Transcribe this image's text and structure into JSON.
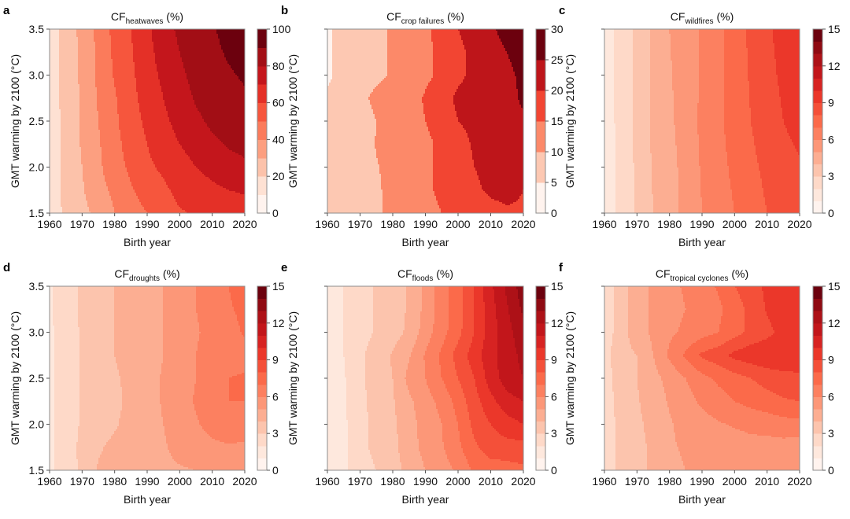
{
  "figure": {
    "panels_layout": "2 rows x 3 columns"
  },
  "chart_data": [
    {
      "id": "a",
      "type": "heatmap",
      "letter": "a",
      "title_main": "CF",
      "title_sub": "heatwaves",
      "title_suffix": " (%)",
      "xlabel": "Birth year",
      "ylabel": "GMT warming by 2100 (°C)",
      "show_y_tick_labels": true,
      "xlim": [
        1960,
        2020
      ],
      "ylim": [
        1.5,
        3.5
      ],
      "x_ticks": [
        1960,
        1970,
        1980,
        1990,
        2000,
        2010,
        2020
      ],
      "y_ticks": [
        1.5,
        2.0,
        2.5,
        3.0,
        3.5
      ],
      "y_tick_labels": [
        "1.5",
        "2.0",
        "2.5",
        "3.0",
        "3.5"
      ],
      "levels": [
        0,
        10,
        20,
        30,
        40,
        50,
        60,
        70,
        80,
        90,
        100
      ],
      "colorbar_ticks": [
        0,
        20,
        40,
        60,
        80,
        100
      ],
      "birth_years": [
        1960,
        1965,
        1970,
        1975,
        1980,
        1985,
        1990,
        1995,
        2000,
        2005,
        2010,
        2015,
        2020
      ],
      "gmt": [
        1.5,
        1.75,
        2.0,
        2.25,
        2.5,
        2.75,
        3.0,
        3.25,
        3.5
      ],
      "values": [
        [
          14,
          22,
          27,
          33,
          40,
          46,
          50,
          55,
          59,
          61,
          63,
          65,
          66
        ],
        [
          14,
          23,
          29,
          37,
          42,
          49,
          54,
          58,
          63,
          66,
          68,
          70,
          71
        ],
        [
          14,
          23,
          30,
          38,
          46,
          52,
          58,
          62,
          66,
          70,
          73,
          76,
          78
        ],
        [
          14,
          23,
          31,
          39,
          47,
          54,
          60,
          66,
          70,
          74,
          78,
          81,
          83
        ],
        [
          14,
          23,
          31,
          40,
          48,
          56,
          62,
          68,
          73,
          78,
          82,
          85,
          87
        ],
        [
          14,
          24,
          31,
          41,
          49,
          57,
          64,
          70,
          76,
          81,
          85,
          87,
          89
        ],
        [
          14,
          24,
          32,
          42,
          51,
          58,
          66,
          72,
          78,
          83,
          87,
          89,
          91
        ],
        [
          14,
          24,
          32,
          42,
          52,
          59,
          67,
          74,
          80,
          85,
          88,
          91,
          94
        ],
        [
          14,
          24,
          33,
          43,
          53,
          60,
          68,
          76,
          82,
          86,
          89,
          93,
          97
        ]
      ]
    },
    {
      "id": "b",
      "type": "heatmap",
      "letter": "b",
      "title_main": "CF",
      "title_sub": "crop failures",
      "title_suffix": " (%)",
      "xlabel": "Birth year",
      "ylabel": "GMT warming by 2100 (°C)",
      "show_y_tick_labels": false,
      "xlim": [
        1960,
        2020
      ],
      "ylim": [
        1.5,
        3.5
      ],
      "x_ticks": [
        1960,
        1970,
        1980,
        1990,
        2000,
        2010,
        2020
      ],
      "y_ticks": [
        1.5,
        2.0,
        2.5,
        3.0,
        3.5
      ],
      "y_tick_labels": [
        "",
        "",
        "",
        "",
        ""
      ],
      "levels": [
        0,
        5,
        10,
        15,
        20,
        25,
        30
      ],
      "colorbar_ticks": [
        0,
        5,
        10,
        15,
        20,
        25,
        30
      ],
      "birth_years": [
        1960,
        1965,
        1970,
        1975,
        1980,
        1985,
        1990,
        1995,
        2000,
        2005,
        2010,
        2015,
        2020
      ],
      "gmt": [
        1.5,
        1.75,
        2.0,
        2.25,
        2.5,
        2.75,
        3.0,
        3.25,
        3.5
      ],
      "values": [
        [
          6,
          7,
          8,
          9.5,
          11,
          12,
          13.5,
          15,
          16,
          17,
          18,
          19,
          19
        ],
        [
          6,
          7,
          8,
          9.5,
          11,
          12,
          14,
          16,
          17.5,
          19,
          21,
          22,
          20
        ],
        [
          6,
          7,
          8,
          9.8,
          11,
          12.5,
          14,
          16,
          18,
          20,
          21.5,
          20,
          21
        ],
        [
          6,
          7,
          8,
          10.2,
          11,
          12.5,
          14,
          16,
          18.5,
          20.5,
          22,
          23,
          24
        ],
        [
          6,
          7,
          8,
          10,
          11.5,
          13,
          15,
          17,
          20,
          21,
          22,
          23,
          24
        ],
        [
          6,
          7,
          9,
          11,
          12,
          13,
          15.5,
          18,
          21,
          22,
          22,
          23,
          26
        ],
        [
          4,
          7,
          8,
          9,
          10.5,
          12,
          14,
          16,
          19,
          21,
          22,
          24,
          26
        ],
        [
          4,
          7,
          8,
          9,
          10.5,
          12,
          14,
          16,
          19,
          21,
          23,
          25,
          27
        ],
        [
          4,
          7,
          8,
          9,
          10.5,
          12,
          14,
          17,
          20,
          22,
          24,
          27,
          29
        ]
      ]
    },
    {
      "id": "c",
      "type": "heatmap",
      "letter": "c",
      "title_main": "CF",
      "title_sub": "wildfires",
      "title_suffix": " (%)",
      "xlabel": "Birth year",
      "ylabel": "GMT warming by 2100 (°C)",
      "show_y_tick_labels": false,
      "xlim": [
        1960,
        2020
      ],
      "ylim": [
        1.5,
        3.5
      ],
      "x_ticks": [
        1960,
        1970,
        1980,
        1990,
        2000,
        2010,
        2020
      ],
      "y_ticks": [
        1.5,
        2.0,
        2.5,
        3.0,
        3.5
      ],
      "y_tick_labels": [
        "",
        "",
        "",
        "",
        ""
      ],
      "levels": [
        0,
        1,
        2,
        3,
        4,
        5,
        6,
        7,
        8,
        9,
        10,
        11,
        12,
        13,
        14,
        15
      ],
      "colorbar_ticks": [
        0,
        3,
        6,
        9,
        12,
        15
      ],
      "birth_years": [
        1960,
        1965,
        1970,
        1975,
        1980,
        1985,
        1990,
        1995,
        2000,
        2005,
        2010,
        2015,
        2020
      ],
      "gmt": [
        1.5,
        2.0,
        2.5,
        3.0,
        3.5
      ],
      "values": [
        [
          1.5,
          2.2,
          3.2,
          4,
          4.6,
          5.3,
          6,
          6.5,
          7,
          7.6,
          8,
          8.3,
          8.4
        ],
        [
          1.5,
          2.2,
          3.2,
          4.1,
          4.6,
          5.4,
          6.1,
          6.7,
          7.2,
          7.8,
          8.2,
          8.7,
          8.9
        ],
        [
          1.5,
          2.3,
          3.3,
          4.2,
          4.8,
          5.5,
          6.2,
          6.8,
          7.4,
          8,
          8.5,
          9,
          9.3
        ],
        [
          1.5,
          2.3,
          3.3,
          4.2,
          4.9,
          5.5,
          6.1,
          6.7,
          7.5,
          8.1,
          8.7,
          9.2,
          9.6
        ],
        [
          1.5,
          2.3,
          3.3,
          4.2,
          5,
          5.6,
          6.1,
          6.7,
          7.5,
          8.2,
          8.8,
          9.4,
          10
        ]
      ]
    },
    {
      "id": "d",
      "type": "heatmap",
      "letter": "d",
      "title_main": "CF",
      "title_sub": "droughts",
      "title_suffix": " (%)",
      "xlabel": "Birth year",
      "ylabel": "GMT warming by 2100 (°C)",
      "show_y_tick_labels": true,
      "xlim": [
        1960,
        2020
      ],
      "ylim": [
        1.5,
        3.5
      ],
      "x_ticks": [
        1960,
        1970,
        1980,
        1990,
        2000,
        2010,
        2020
      ],
      "y_ticks": [
        1.5,
        2.0,
        2.5,
        3.0,
        3.5
      ],
      "y_tick_labels": [
        "1.5",
        "2.0",
        "2.5",
        "3.0",
        "3.5"
      ],
      "levels": [
        0,
        1,
        2,
        3,
        4,
        5,
        6,
        7,
        8,
        9,
        10,
        11,
        12,
        13,
        14,
        15
      ],
      "colorbar_ticks": [
        0,
        3,
        6,
        9,
        12,
        15
      ],
      "birth_years": [
        1960,
        1965,
        1970,
        1975,
        1980,
        1985,
        1990,
        1995,
        2000,
        2005,
        2010,
        2015,
        2020
      ],
      "gmt": [
        1.5,
        1.75,
        2.0,
        2.25,
        2.5,
        2.75,
        3.0,
        3.25,
        3.5
      ],
      "values": [
        [
          1.8,
          2.5,
          3.2,
          4.1,
          4.3,
          4.5,
          4.6,
          4.8,
          4.9,
          5,
          5.2,
          5.3,
          5.2
        ],
        [
          1.8,
          2.6,
          3.2,
          3.9,
          4.2,
          4.4,
          4.6,
          4.9,
          5.3,
          5.6,
          5.8,
          5.9,
          5.8
        ],
        [
          1.8,
          2.6,
          3.1,
          3.6,
          3.9,
          4.3,
          4.6,
          5,
          5.5,
          5.9,
          6.3,
          6.6,
          6.6
        ],
        [
          1.8,
          2.6,
          3.1,
          3.6,
          3.8,
          4.2,
          4.6,
          5.1,
          5.6,
          6.1,
          6.8,
          7,
          7
        ],
        [
          1.8,
          2.6,
          3.1,
          3.6,
          3.9,
          4.2,
          4.6,
          5.1,
          5.5,
          6,
          6.8,
          7,
          7.1
        ],
        [
          1.8,
          2.6,
          3.1,
          3.6,
          4,
          4.3,
          4.6,
          5,
          5.4,
          6,
          6.4,
          6.6,
          6.7
        ],
        [
          1.8,
          2.6,
          3.1,
          3.6,
          4,
          4.3,
          4.6,
          5,
          5.4,
          5.9,
          6.3,
          6.7,
          7.1
        ],
        [
          1.8,
          2.7,
          3.1,
          3.6,
          4,
          4.4,
          4.7,
          5,
          5.5,
          6,
          6.4,
          6.9,
          7.2
        ],
        [
          1.8,
          2.7,
          3.1,
          3.6,
          4,
          4.4,
          4.8,
          5,
          5.5,
          6,
          6.5,
          7,
          7.4
        ]
      ]
    },
    {
      "id": "e",
      "type": "heatmap",
      "letter": "e",
      "title_main": "CF",
      "title_sub": "floods",
      "title_suffix": " (%)",
      "xlabel": "Birth year",
      "ylabel": "GMT warming by 2100 (°C)",
      "show_y_tick_labels": false,
      "xlim": [
        1960,
        2020
      ],
      "ylim": [
        1.5,
        3.5
      ],
      "x_ticks": [
        1960,
        1970,
        1980,
        1990,
        2000,
        2010,
        2020
      ],
      "y_ticks": [
        1.5,
        2.0,
        2.5,
        3.0,
        3.5
      ],
      "y_tick_labels": [
        "",
        "",
        "",
        "",
        ""
      ],
      "levels": [
        0,
        1,
        2,
        3,
        4,
        5,
        6,
        7,
        8,
        9,
        10,
        11,
        12,
        13,
        14,
        15
      ],
      "colorbar_ticks": [
        0,
        3,
        6,
        9,
        12,
        15
      ],
      "birth_years": [
        1960,
        1965,
        1970,
        1975,
        1980,
        1985,
        1990,
        1995,
        2000,
        2005,
        2010,
        2015,
        2020
      ],
      "gmt": [
        1.5,
        1.75,
        2.0,
        2.25,
        2.5,
        2.75,
        3.0,
        3.25,
        3.5
      ],
      "values": [
        [
          1.5,
          1.8,
          2.5,
          3,
          3.6,
          4.3,
          5,
          5.5,
          6.2,
          7.2,
          7.5,
          7.6,
          7.8
        ],
        [
          1.5,
          1.8,
          2.7,
          3.3,
          3.7,
          4.6,
          5.3,
          5.9,
          6.8,
          7.8,
          8.5,
          8.6,
          8.6
        ],
        [
          1.5,
          1.8,
          2.7,
          3.3,
          3.8,
          4.6,
          5.4,
          6,
          7,
          8.3,
          9,
          9.6,
          10
        ],
        [
          1.5,
          1.9,
          2.7,
          3.4,
          3.9,
          4.8,
          5.6,
          6.3,
          7.4,
          8.6,
          9.7,
          10.6,
          11
        ],
        [
          1.5,
          1.9,
          2.8,
          3.5,
          4,
          5.3,
          6,
          7,
          8,
          9,
          10.5,
          11.5,
          12
        ],
        [
          1.5,
          2,
          2.8,
          3.5,
          4.1,
          4.9,
          6.1,
          7.2,
          8.4,
          9.5,
          10.7,
          11.5,
          12.3
        ],
        [
          1.5,
          2,
          2.6,
          3.1,
          3.6,
          4.2,
          5.5,
          6.6,
          7.7,
          9,
          10.5,
          11.6,
          12.7
        ],
        [
          1.5,
          2,
          2.6,
          3.1,
          3.6,
          4.1,
          5.3,
          6.5,
          7.6,
          9,
          10.6,
          11.9,
          13.2
        ],
        [
          1.5,
          2,
          2.6,
          3.1,
          3.6,
          4.1,
          5.3,
          6.5,
          7.6,
          9.1,
          10.8,
          12.2,
          13.6
        ]
      ]
    },
    {
      "id": "f",
      "type": "heatmap",
      "letter": "f",
      "title_main": "CF",
      "title_sub": "tropical cyclones",
      "title_suffix": " (%)",
      "xlabel": "Birth year",
      "ylabel": "GMT warming by 2100 (°C)",
      "show_y_tick_labels": false,
      "xlim": [
        1960,
        2020
      ],
      "ylim": [
        1.5,
        3.5
      ],
      "x_ticks": [
        1960,
        1970,
        1980,
        1990,
        2000,
        2010,
        2020
      ],
      "y_ticks": [
        1.5,
        2.0,
        2.5,
        3.0,
        3.5
      ],
      "y_tick_labels": [
        "",
        "",
        "",
        "",
        ""
      ],
      "levels": [
        0,
        1,
        2,
        3,
        4,
        5,
        6,
        7,
        8,
        9,
        10,
        11,
        12,
        13,
        14,
        15
      ],
      "colorbar_ticks": [
        0,
        3,
        6,
        9,
        12,
        15
      ],
      "birth_years": [
        1960,
        1965,
        1970,
        1975,
        1980,
        1985,
        1990,
        1995,
        2000,
        2005,
        2010,
        2015,
        2020
      ],
      "gmt": [
        1.5,
        1.75,
        2.0,
        2.25,
        2.5,
        2.75,
        3.0,
        3.25,
        3.5
      ],
      "values": [
        [
          2.4,
          3.3,
          3.7,
          4.2,
          4.8,
          5,
          5.2,
          5.2,
          5.3,
          5.3,
          5.3,
          5.4,
          5.4
        ],
        [
          2.4,
          3.3,
          3.7,
          4.2,
          4.9,
          5.1,
          5.3,
          5.4,
          5.5,
          5.6,
          5.6,
          5.6,
          5.5
        ],
        [
          2.4,
          3.3,
          3.8,
          4.3,
          4.9,
          5.3,
          5.6,
          5.9,
          6.1,
          6.3,
          6.4,
          6.6,
          6.7
        ],
        [
          2.5,
          3.4,
          3.9,
          4.5,
          5.1,
          5.6,
          6.2,
          6.6,
          7,
          7.3,
          7.6,
          7.9,
          8
        ],
        [
          2.5,
          3.5,
          4,
          4.7,
          5.3,
          6,
          6.7,
          7.2,
          7.6,
          8,
          8.4,
          8.6,
          8.7
        ],
        [
          2.6,
          3.7,
          4,
          5,
          6.2,
          7.2,
          8.2,
          8.6,
          9.3,
          9.6,
          9.8,
          9.9,
          9.9
        ],
        [
          2.3,
          3.6,
          4.5,
          5.2,
          5.8,
          6.2,
          6.6,
          7,
          7.6,
          8.3,
          8.7,
          9.4,
          9.8
        ],
        [
          2.3,
          3.6,
          4.5,
          5.2,
          5.7,
          6,
          6.4,
          6.8,
          7.5,
          8.3,
          9.1,
          9.6,
          9.9
        ],
        [
          2.3,
          3.6,
          4.5,
          5.2,
          5.8,
          6.1,
          6.6,
          7.1,
          8,
          8.6,
          9.2,
          9.6,
          10
        ]
      ]
    }
  ],
  "colormap": {
    "name": "Reds",
    "stops": [
      "#fff5f0",
      "#fee0d2",
      "#fcbba1",
      "#fc9272",
      "#fb6a4a",
      "#ef3b2c",
      "#cb181d",
      "#a50f15",
      "#67000d"
    ]
  }
}
